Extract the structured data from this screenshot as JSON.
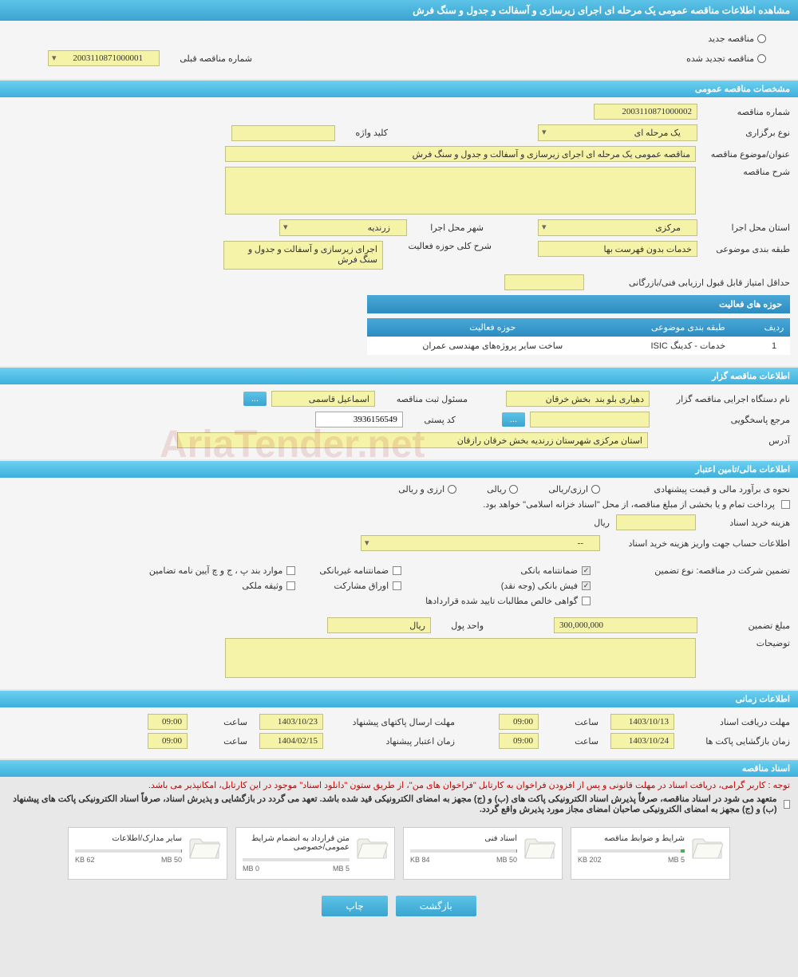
{
  "page_title": "مشاهده اطلاعات مناقصه عمومی یک مرحله ای اجرای زیرسازی و آسفالت و جدول و سنگ فرش",
  "radio": {
    "new_tender": "مناقصه جدید",
    "renewed_tender": "مناقصه تجدید شده",
    "prev_number_label": "شماره مناقصه قبلی",
    "prev_number_value": "2003110871000001"
  },
  "sections": {
    "general_spec": "مشخصات مناقصه عمومی",
    "organizer_info": "اطلاعات مناقصه گزار",
    "financial_info": "اطلاعات مالی/تامین اعتبار",
    "time_info": "اطلاعات زمانی",
    "tender_docs": "اسناد مناقصه"
  },
  "general": {
    "tender_number_label": "شماره مناقصه",
    "tender_number": "2003110871000002",
    "holding_type_label": "نوع برگزاری",
    "holding_type": "یک مرحله ای",
    "keyword_label": "کلید واژه",
    "keyword": "",
    "title_label": "عنوان/موضوع مناقصه",
    "title": "مناقصه عمومی یک مرحله ای اجرای زیرسازی و آسفالت و جدول و سنگ فرش",
    "description_label": "شرح مناقصه",
    "province_label": "استان محل اجرا",
    "province": "مرکزی",
    "city_label": "شهر محل اجرا",
    "city": "زرندیه",
    "subject_class_label": "طبقه بندی موضوعی",
    "subject_class": "خدمات بدون فهرست بها",
    "activity_desc_label": "شرح کلی حوزه فعالیت",
    "activity_desc": "اجرای زیرسازی و آسفالت و جدول و سنگ فرش",
    "min_score_label": "حداقل امتیاز قابل قبول ارزیابی فنی/بازرگانی"
  },
  "activity_table": {
    "title": "حوزه های فعالیت",
    "cols": [
      "ردیف",
      "طبقه بندی موضوعی",
      "حوزه فعالیت"
    ],
    "row": [
      "1",
      "خدمات - کدینگ ISIC",
      "ساخت سایر پروژه‌های مهندسی عمران"
    ]
  },
  "organizer": {
    "device_name_label": "نام دستگاه اجرایی مناقصه گزار",
    "device_name": "دهیاری بلو بند  بخش خرقان",
    "registrar_label": "مسئول ثبت مناقصه",
    "registrar": "اسماعیل قاسمی",
    "ellipsis": "...",
    "responder_label": "مرجع پاسخگویی",
    "postal_code_label": "کد پستی",
    "postal_code": "3936156549",
    "address_label": "آدرس",
    "address": "استان مرکزی شهرستان زرندیه بخش خرقان رازقان"
  },
  "financial": {
    "estimate_label": "نحوه ی برآورد مالی و قیمت پیشنهادی",
    "currency_radio": "ارزی/ریالی",
    "riyali": "ریالی",
    "arzi": "ارزی و ریالی",
    "payment_note": "پرداخت تمام و یا بخشی از مبلغ مناقصه، از محل \"اسناد خزانه اسلامی\" خواهد بود.",
    "doc_fee_label": "هزینه خرید اسناد",
    "riyal": "ریال",
    "account_info_label": "اطلاعات حساب جهت واریز هزینه خرید اسناد",
    "account_value": "--",
    "guarantee_label": "تضمین شرکت در مناقصه:   نوع تضمین",
    "g1": "ضمانتنامه بانکی",
    "g2": "فیش بانکی (وجه نقد)",
    "g3": "گواهی خالص مطالبات تایید شده قراردادها",
    "g4": "ضمانتنامه غیربانکی",
    "g5": "اوراق مشارکت",
    "g6": "موارد بند پ ، ج و چ آیین نامه تضامین",
    "g7": "وثیقه ملکی",
    "guarantee_amount_label": "مبلغ تضمین",
    "guarantee_amount": "300,000,000",
    "currency_unit_label": "واحد پول",
    "currency_unit": "ریال",
    "notes_label": "توضیحات"
  },
  "timing": {
    "receive_deadline_label": "مهلت دریافت اسناد",
    "receive_date": "1403/10/13",
    "hour_label": "ساعت",
    "receive_time": "09:00",
    "packet_deadline_label": "مهلت ارسال پاکتهای پیشنهاد",
    "packet_date": "1403/10/23",
    "packet_time": "09:00",
    "open_time_label": "زمان بازگشایی پاکت ها",
    "open_date": "1403/10/24",
    "open_time": "09:00",
    "credit_time_label": "زمان اعتبار پیشنهاد",
    "credit_date": "1404/02/15",
    "credit_time": "09:00"
  },
  "docs": {
    "red_notice": "توجه : کاربر گرامی، دریافت اسناد در مهلت قانونی و پس از افزودن فراخوان به کارتابل \"فراخوان های من\"، از طریق ستون \"دانلود اسناد\" موجود در این کارتابل، امکانپذیر می باشد.",
    "consent": "متعهد می شود در اسناد مناقصه، صرفاً پذیرش اسناد الکترونیکی پاکت های (ب) و (ج) مجهز به امضای الکترونیکی قید شده باشد. تعهد می گردد در بازگشایی و پذیرش اسناد، صرفاً اسناد الکترونیکی پاکت های پیشنهاد (ب) و (ج) مجهز به امضای الکترونیکی صاحبان امضای مجاز مورد پذیرش واقع گردد.",
    "files": [
      {
        "label": "شرایط و ضوابط مناقصه",
        "used": "202 KB",
        "total": "5 MB",
        "pct": 4
      },
      {
        "label": "اسناد فنی",
        "used": "84 KB",
        "total": "50 MB",
        "pct": 1
      },
      {
        "label": "متن قرارداد به انضمام شرایط عمومی/خصوصی",
        "used": "0 MB",
        "total": "5 MB",
        "pct": 0
      },
      {
        "label": "سایر مدارک/اطلاعات",
        "used": "62 KB",
        "total": "50 MB",
        "pct": 1
      }
    ]
  },
  "buttons": {
    "back": "بازگشت",
    "print": "چاپ"
  },
  "watermark": "AriaTender.net",
  "colors": {
    "header_bg": "#4db8e0",
    "yellow": "#f5f3a7",
    "red_text": "#cc0000"
  }
}
